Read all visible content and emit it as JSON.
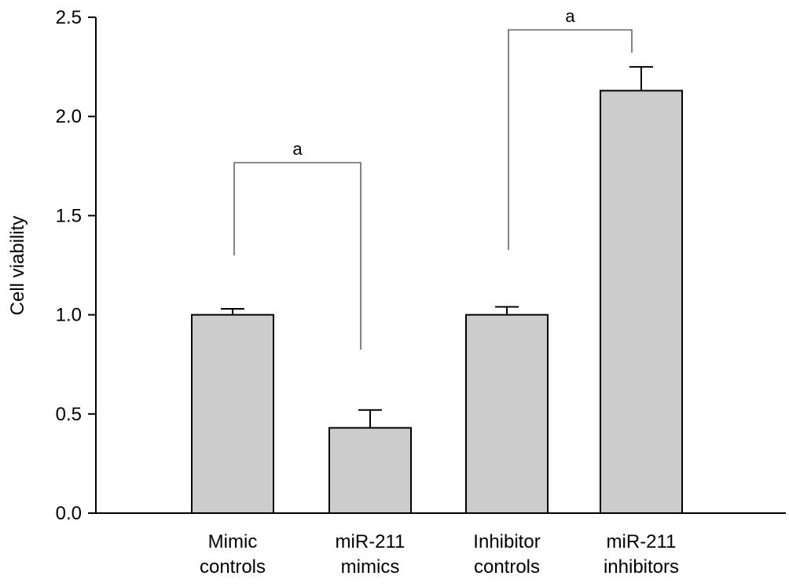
{
  "chart_data": {
    "type": "bar",
    "categories": [
      [
        "Mimic",
        "controls"
      ],
      [
        "miR-211",
        "mimics"
      ],
      [
        "Inhibitor",
        "controls"
      ],
      [
        "miR-211",
        "inhibitors"
      ]
    ],
    "values": [
      1.0,
      0.43,
      1.0,
      2.13
    ],
    "errors": [
      0.03,
      0.09,
      0.04,
      0.12
    ],
    "ylabel": "Cell viability",
    "xlabel": "",
    "title": "",
    "ylim": [
      0,
      2.5
    ],
    "yticks": [
      "0.0",
      "0.5",
      "1.0",
      "1.5",
      "2.0",
      "2.5"
    ],
    "grid": false,
    "bar_color": "#cccccc",
    "significance": [
      {
        "from": 0,
        "to": 1,
        "label": "a"
      },
      {
        "from": 2,
        "to": 3,
        "label": "a"
      }
    ]
  }
}
